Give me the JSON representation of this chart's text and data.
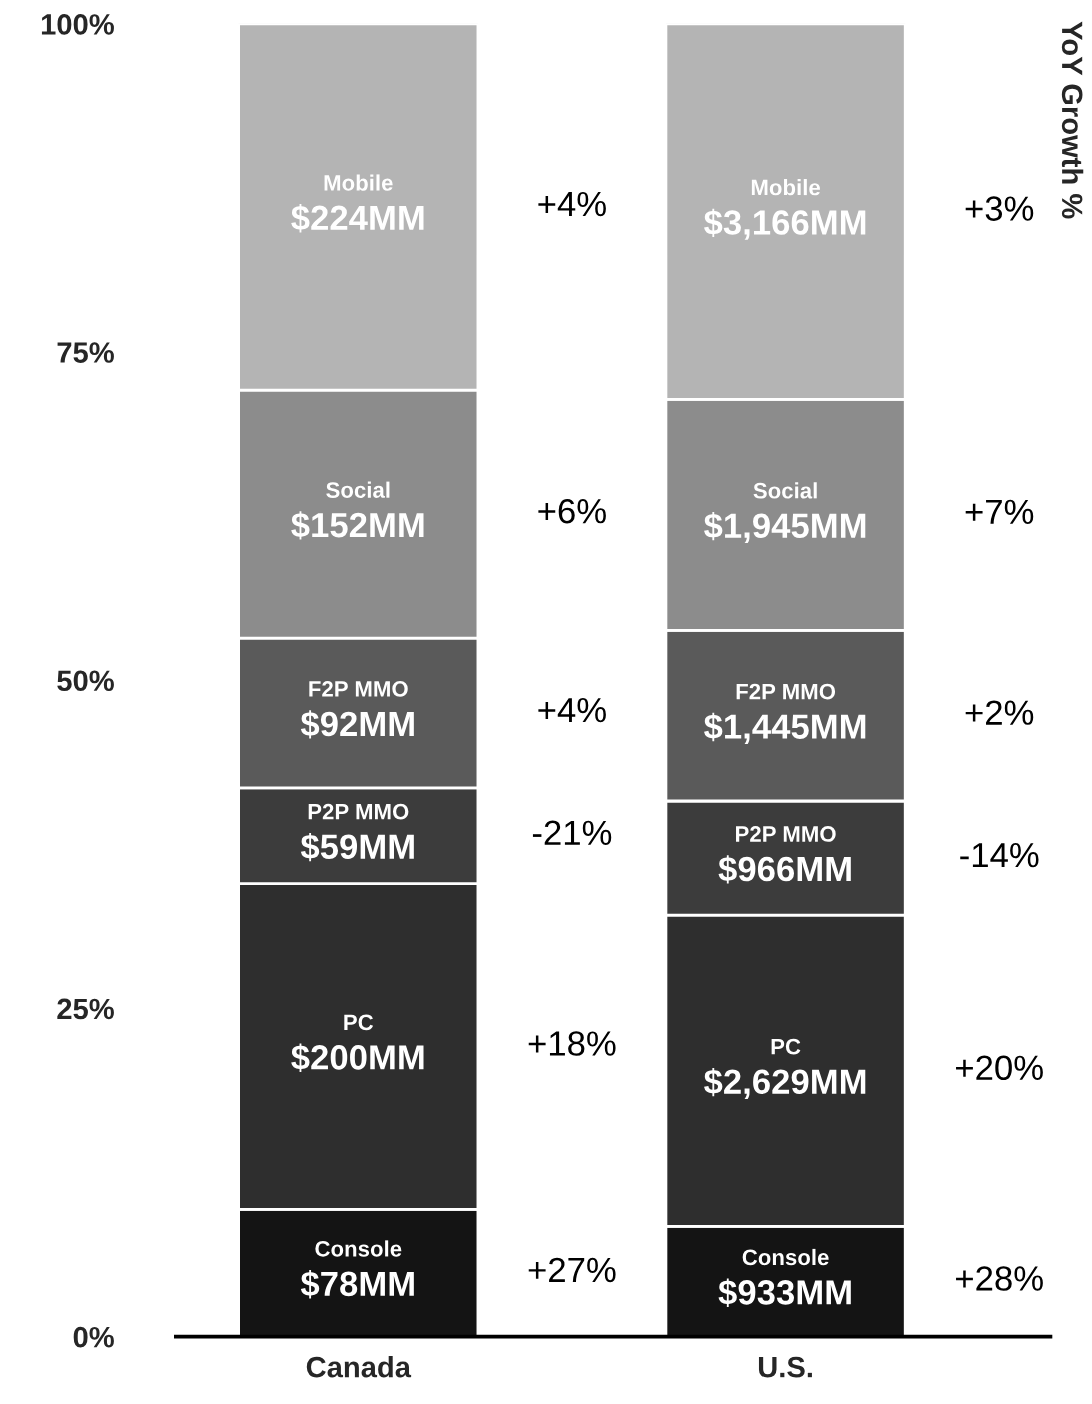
{
  "chart_data": {
    "type": "bar",
    "stacked": true,
    "categories": [
      "Canada",
      "U.S."
    ],
    "ylim": [
      0,
      100
    ],
    "yticks": [
      {
        "value": 0,
        "label": "0%"
      },
      {
        "value": 25,
        "label": "25%"
      },
      {
        "value": 50,
        "label": "50%"
      },
      {
        "value": 75,
        "label": "75%"
      },
      {
        "value": 100,
        "label": "100%"
      }
    ],
    "grid": false,
    "series": [
      {
        "name": "Console",
        "color": "#141414",
        "values": [
          9.7,
          8.4
        ]
      },
      {
        "name": "PC",
        "color": "#2e2e2e",
        "values": [
          24.8,
          23.7
        ]
      },
      {
        "name": "P2P MMO",
        "color": "#3c3c3c",
        "values": [
          7.3,
          8.7
        ]
      },
      {
        "name": "F2P MMO",
        "color": "#5a5a5a",
        "values": [
          11.4,
          13.0
        ]
      },
      {
        "name": "Social",
        "color": "#8c8c8c",
        "values": [
          18.9,
          17.6
        ]
      },
      {
        "name": "Mobile",
        "color": "#b4b4b4",
        "values": [
          27.9,
          28.6
        ]
      }
    ],
    "annotations": [
      "YoY Growth %",
      "$78MM",
      "$933MM",
      "$200MM",
      "$2,629MM",
      "$59MM",
      "$966MM",
      "$92MM",
      "$1,445MM",
      "$152MM",
      "$1,945MM",
      "$224MM",
      "$3,166MM",
      "+27%",
      "+28%",
      "+18%",
      "+20%",
      "-21%",
      "-14%",
      "+4%",
      "+2%",
      "+6%",
      "+7%",
      "+4%",
      "+3%"
    ]
  }
}
